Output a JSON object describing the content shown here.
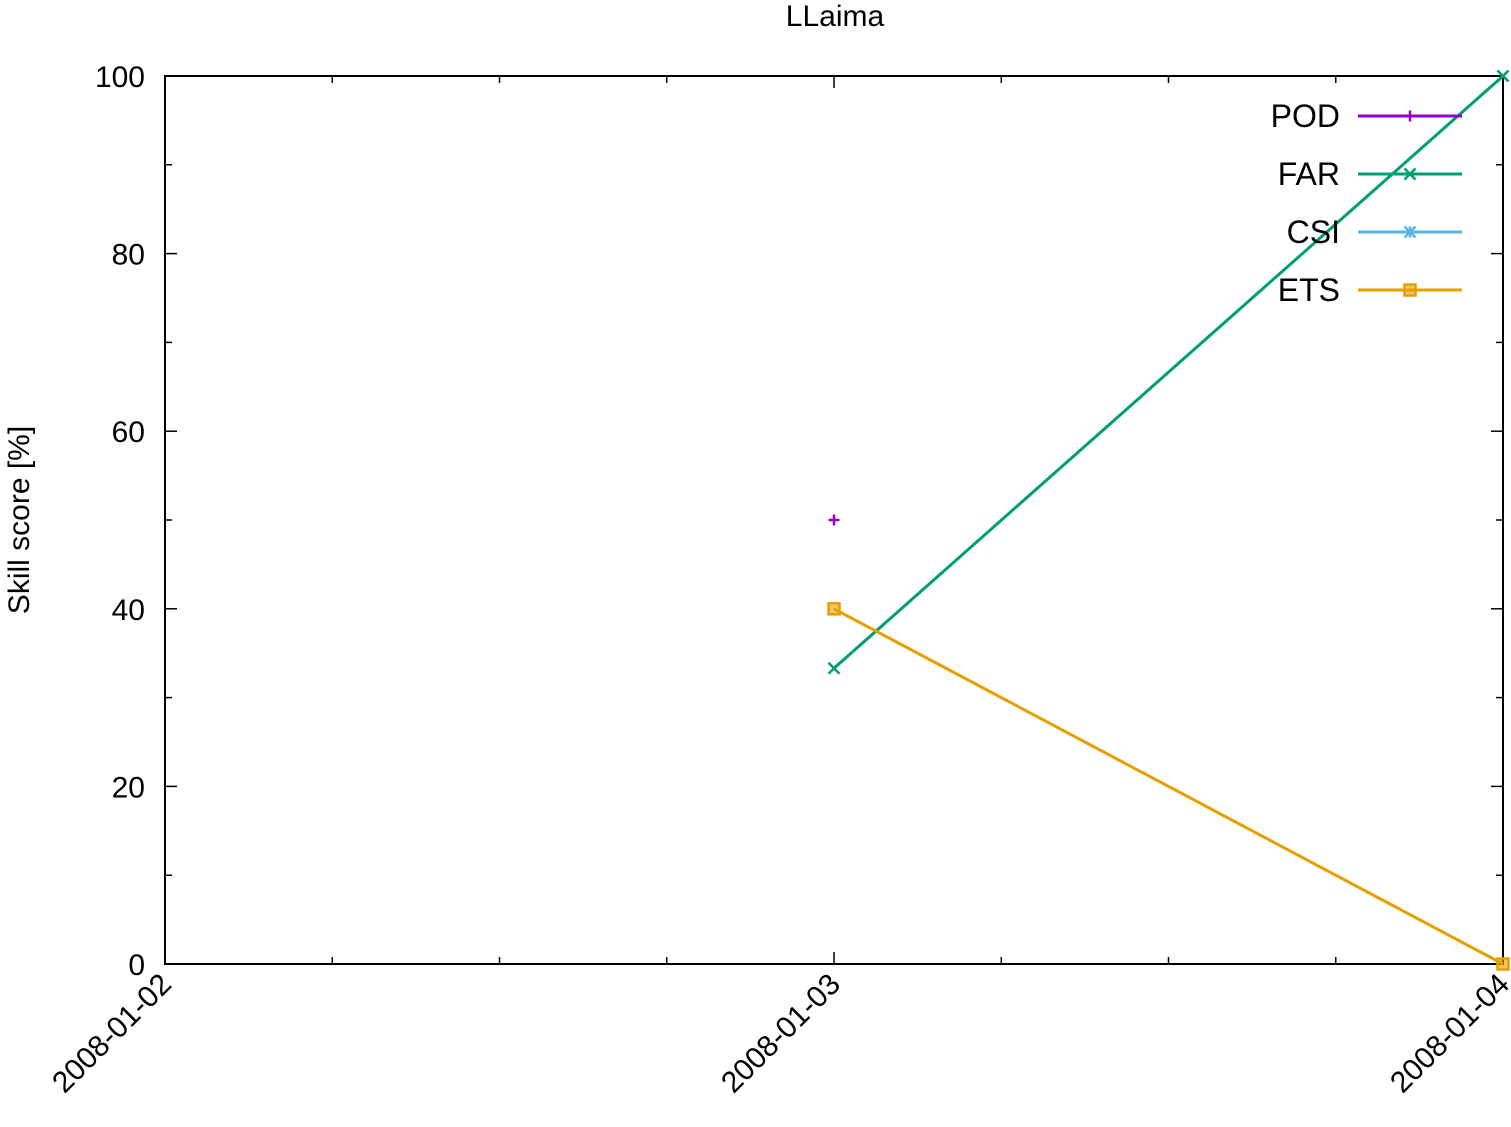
{
  "chart_data": {
    "type": "line",
    "title": "LLaima",
    "xlabel": "",
    "ylabel": "Skill score [%]",
    "x_ticks": [
      "2008-01-02",
      "2008-01-03",
      "2008-01-04"
    ],
    "x_minor_ticks_per_interval": 4,
    "xlim": [
      "2008-01-02",
      "2008-01-04"
    ],
    "ylim": [
      0,
      100
    ],
    "y_ticks": [
      0,
      20,
      40,
      60,
      80,
      100
    ],
    "y_minor_step": 10,
    "grid": false,
    "legend_position": "top-right",
    "series": [
      {
        "name": "POD",
        "color": "#9400d3",
        "marker": "plus",
        "points": [
          {
            "x": "2008-01-03",
            "y": 50
          }
        ]
      },
      {
        "name": "FAR",
        "color": "#009e73",
        "marker": "cross",
        "points": [
          {
            "x": "2008-01-03",
            "y": 33.3
          },
          {
            "x": "2008-01-04",
            "y": 100
          }
        ]
      },
      {
        "name": "CSI",
        "color": "#56b4e9",
        "marker": "star",
        "points": []
      },
      {
        "name": "ETS",
        "color": "#e69f00",
        "marker": "square",
        "points": [
          {
            "x": "2008-01-03",
            "y": 40
          },
          {
            "x": "2008-01-04",
            "y": 0
          }
        ]
      }
    ]
  }
}
